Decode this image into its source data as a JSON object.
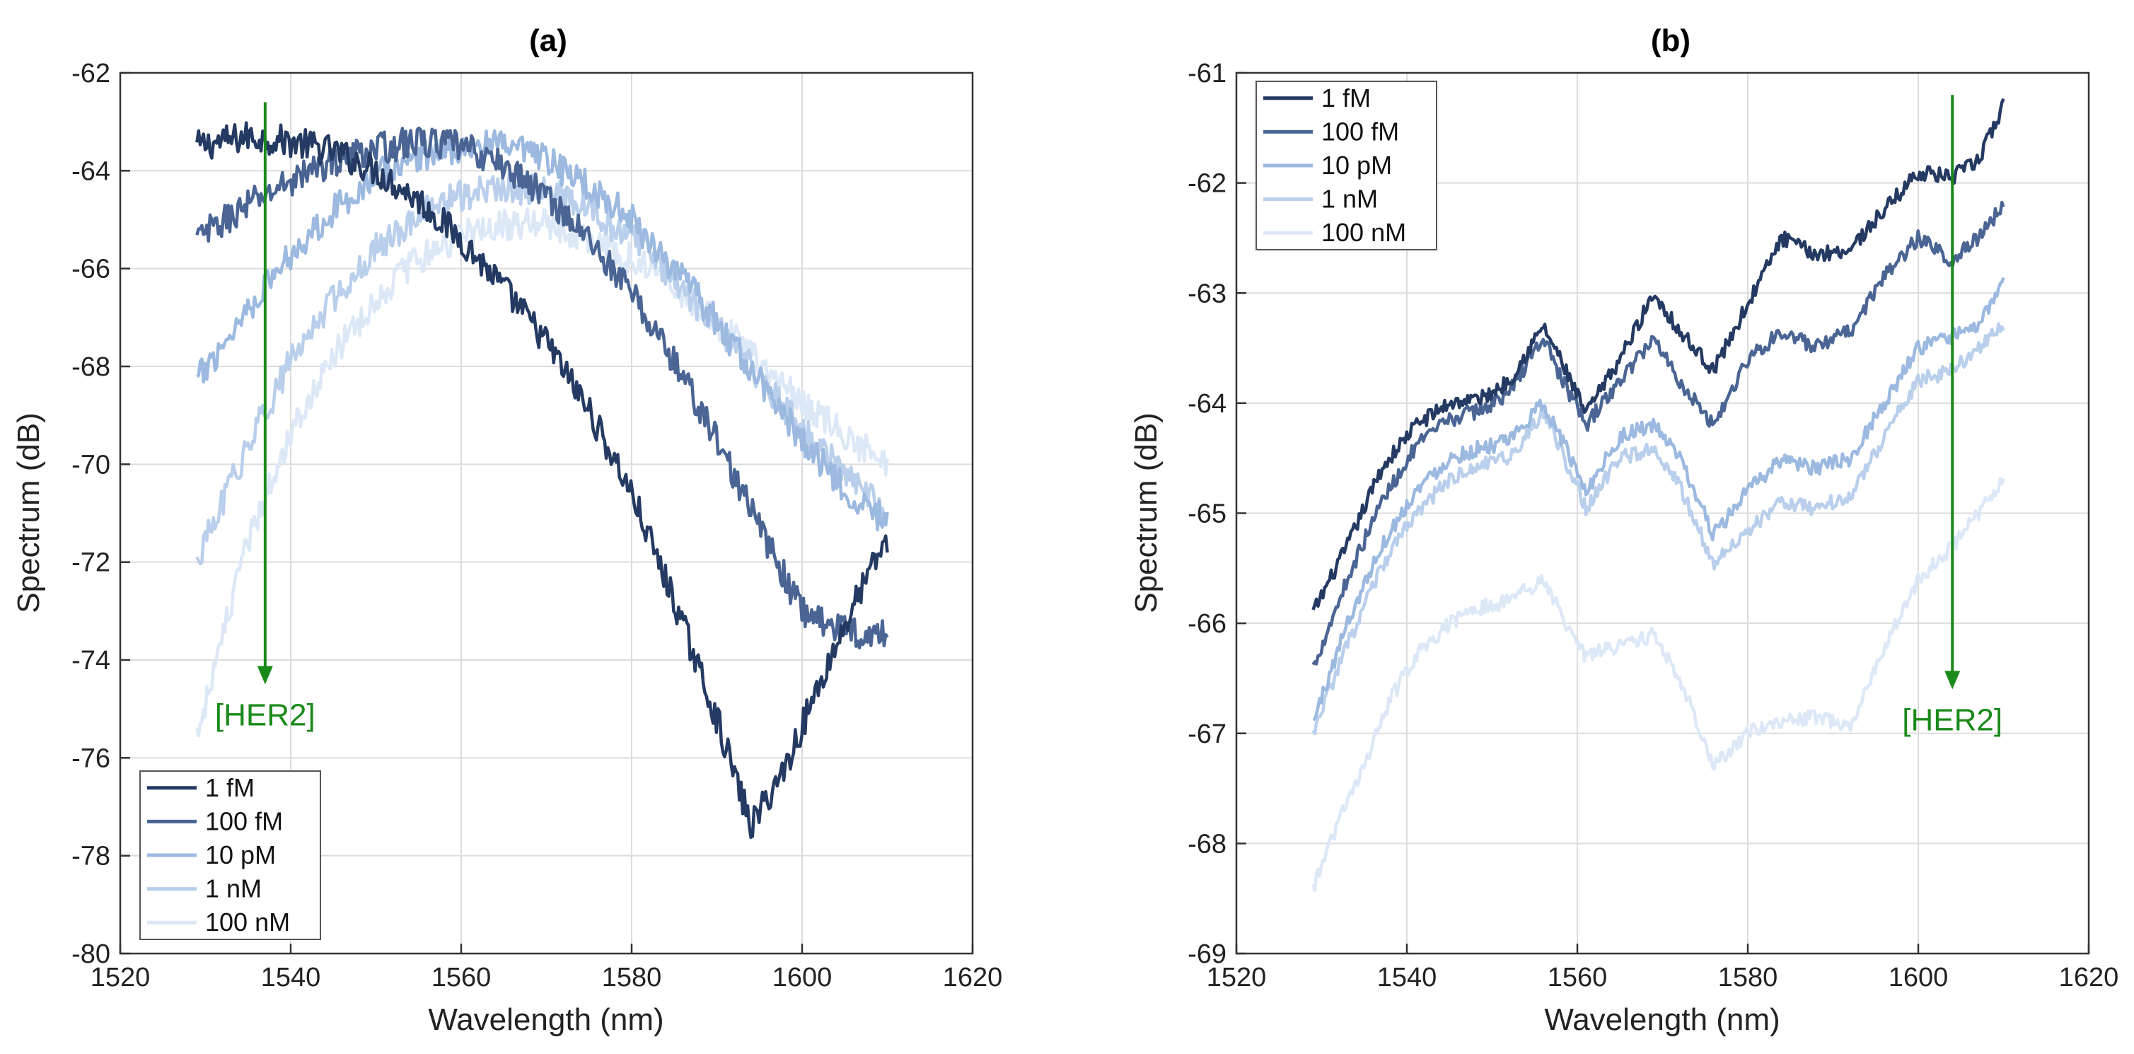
{
  "chart_data": [
    {
      "type": "line",
      "title": "(a)",
      "xlabel": "Wavelength (nm)",
      "ylabel": "Spectrum (dB)",
      "xlim": [
        1520,
        1620
      ],
      "ylim": [
        -80,
        -62
      ],
      "xticks": [
        "1520",
        "1540",
        "1560",
        "1580",
        "1600",
        "1620"
      ],
      "yticks": [
        "-80",
        "-78",
        "-76",
        "-74",
        "-72",
        "-70",
        "-68",
        "-66",
        "-64",
        "-62"
      ],
      "grid": true,
      "legend_position": "bottom-left",
      "annotation": {
        "text": "[HER2]",
        "color": "#1a8a1a",
        "arrow_x": 1537,
        "arrow_from": -62.6,
        "arrow_to": -74.5
      },
      "series": [
        {
          "name": "1 fM",
          "color": "#243a62",
          "x": [
            1529,
            1535,
            1540,
            1545,
            1550,
            1555,
            1560,
            1565,
            1570,
            1575,
            1580,
            1585,
            1590,
            1594,
            1598,
            1602,
            1606,
            1610
          ],
          "y": [
            -63.5,
            -63.3,
            -63.4,
            -63.6,
            -64.0,
            -64.6,
            -65.4,
            -66.4,
            -67.5,
            -68.9,
            -70.6,
            -72.8,
            -75.2,
            -77.4,
            -76.2,
            -74.5,
            -72.9,
            -71.5
          ]
        },
        {
          "name": "100 fM",
          "color": "#4a6594",
          "x": [
            1529,
            1535,
            1540,
            1545,
            1550,
            1555,
            1560,
            1565,
            1570,
            1575,
            1580,
            1585,
            1590,
            1595,
            1600,
            1605,
            1610
          ],
          "y": [
            -65.4,
            -64.7,
            -64.2,
            -63.8,
            -63.55,
            -63.4,
            -63.5,
            -63.9,
            -64.5,
            -65.4,
            -66.5,
            -67.9,
            -69.5,
            -71.3,
            -73.0,
            -73.4,
            -73.5
          ]
        },
        {
          "name": "10 pM",
          "color": "#9cb9e0",
          "x": [
            1529,
            1535,
            1540,
            1545,
            1550,
            1555,
            1560,
            1565,
            1570,
            1575,
            1580,
            1585,
            1590,
            1595,
            1600,
            1605,
            1610
          ],
          "y": [
            -68.3,
            -66.8,
            -65.7,
            -64.8,
            -64.1,
            -63.7,
            -63.5,
            -63.5,
            -63.8,
            -64.3,
            -65.0,
            -66.0,
            -67.1,
            -68.3,
            -69.5,
            -70.5,
            -71.2
          ]
        },
        {
          "name": "1 nM",
          "color": "#b9cfeb",
          "x": [
            1529,
            1535,
            1540,
            1545,
            1550,
            1555,
            1560,
            1565,
            1570,
            1575,
            1580,
            1585,
            1590,
            1595,
            1600,
            1605,
            1610
          ],
          "y": [
            -72.0,
            -69.6,
            -67.9,
            -66.6,
            -65.6,
            -64.9,
            -64.5,
            -64.35,
            -64.4,
            -64.8,
            -65.4,
            -66.2,
            -67.2,
            -68.2,
            -69.3,
            -70.2,
            -71.0
          ]
        },
        {
          "name": "100 nM",
          "color": "#dde8f7",
          "x": [
            1529,
            1535,
            1540,
            1545,
            1550,
            1555,
            1560,
            1565,
            1570,
            1575,
            1580,
            1585,
            1590,
            1595,
            1600,
            1605,
            1610
          ],
          "y": [
            -75.5,
            -71.6,
            -69.3,
            -67.8,
            -66.6,
            -65.8,
            -65.3,
            -65.1,
            -65.1,
            -65.35,
            -65.8,
            -66.4,
            -67.1,
            -67.9,
            -68.7,
            -69.4,
            -70.0
          ]
        }
      ]
    },
    {
      "type": "line",
      "title": "(b)",
      "xlabel": "Wavelength (nm)",
      "ylabel": "Spectrum (dB)",
      "xlim": [
        1520,
        1620
      ],
      "ylim": [
        -69,
        -61
      ],
      "xticks": [
        "1520",
        "1540",
        "1560",
        "1580",
        "1600",
        "1620"
      ],
      "yticks": [
        "-69",
        "-68",
        "-67",
        "-66",
        "-65",
        "-64",
        "-63",
        "-62",
        "-61"
      ],
      "grid": true,
      "legend_position": "top-left",
      "annotation": {
        "text": "[HER2]",
        "color": "#1a8a1a",
        "arrow_x": 1604,
        "arrow_from": -61.2,
        "arrow_to": -66.6
      },
      "series": [
        {
          "name": "1 fM",
          "color": "#243a62",
          "x": [
            1529,
            1533,
            1537,
            1541,
            1545,
            1549,
            1552,
            1556,
            1558,
            1561,
            1565,
            1569,
            1572,
            1576,
            1580,
            1584,
            1588,
            1592,
            1596,
            1600,
            1604,
            1607,
            1610
          ],
          "y": [
            -65.9,
            -65.3,
            -64.6,
            -64.2,
            -64.0,
            -63.95,
            -63.8,
            -63.3,
            -63.6,
            -64.1,
            -63.6,
            -63.0,
            -63.35,
            -63.7,
            -63.1,
            -62.5,
            -62.65,
            -62.6,
            -62.25,
            -61.9,
            -61.95,
            -61.8,
            -61.3
          ]
        },
        {
          "name": "100 fM",
          "color": "#4a6594",
          "x": [
            1529,
            1533,
            1537,
            1541,
            1545,
            1549,
            1552,
            1556,
            1558,
            1561,
            1565,
            1569,
            1572,
            1576,
            1580,
            1584,
            1588,
            1592,
            1596,
            1600,
            1604,
            1607,
            1610
          ],
          "y": [
            -66.4,
            -65.6,
            -64.9,
            -64.4,
            -64.15,
            -64.05,
            -63.9,
            -63.4,
            -63.75,
            -64.2,
            -63.8,
            -63.4,
            -63.8,
            -64.2,
            -63.6,
            -63.35,
            -63.5,
            -63.35,
            -62.85,
            -62.5,
            -62.7,
            -62.5,
            -62.2
          ]
        },
        {
          "name": "10 pM",
          "color": "#9cb9e0",
          "x": [
            1529,
            1533,
            1537,
            1541,
            1545,
            1549,
            1552,
            1556,
            1558,
            1561,
            1565,
            1569,
            1572,
            1576,
            1580,
            1584,
            1588,
            1592,
            1596,
            1600,
            1604,
            1607,
            1610
          ],
          "y": [
            -66.9,
            -66.0,
            -65.3,
            -64.8,
            -64.5,
            -64.4,
            -64.35,
            -64.0,
            -64.3,
            -64.8,
            -64.3,
            -64.2,
            -64.5,
            -65.2,
            -64.8,
            -64.5,
            -64.6,
            -64.5,
            -64.0,
            -63.5,
            -63.4,
            -63.3,
            -62.9
          ]
        },
        {
          "name": "1 nM",
          "color": "#b9cfeb",
          "x": [
            1529,
            1533,
            1537,
            1541,
            1545,
            1549,
            1552,
            1556,
            1558,
            1561,
            1565,
            1569,
            1572,
            1576,
            1580,
            1584,
            1588,
            1592,
            1596,
            1600,
            1604,
            1607,
            1610
          ],
          "y": [
            -67.0,
            -66.2,
            -65.5,
            -65.0,
            -64.7,
            -64.55,
            -64.5,
            -64.1,
            -64.4,
            -64.95,
            -64.5,
            -64.4,
            -64.75,
            -65.45,
            -65.15,
            -64.9,
            -64.95,
            -64.85,
            -64.3,
            -63.8,
            -63.7,
            -63.5,
            -63.3
          ]
        },
        {
          "name": "100 nM",
          "color": "#dde8f7",
          "x": [
            1529,
            1532,
            1535,
            1538,
            1541,
            1545,
            1549,
            1552,
            1556,
            1558,
            1561,
            1565,
            1569,
            1572,
            1576,
            1580,
            1584,
            1588,
            1592,
            1596,
            1600,
            1604,
            1607,
            1610
          ],
          "y": [
            -68.4,
            -67.8,
            -67.3,
            -66.7,
            -66.3,
            -66.0,
            -65.85,
            -65.8,
            -65.6,
            -65.9,
            -66.3,
            -66.2,
            -66.1,
            -66.5,
            -67.3,
            -67.0,
            -66.9,
            -66.85,
            -66.95,
            -66.2,
            -65.6,
            -65.3,
            -65.0,
            -64.7
          ]
        }
      ]
    }
  ]
}
